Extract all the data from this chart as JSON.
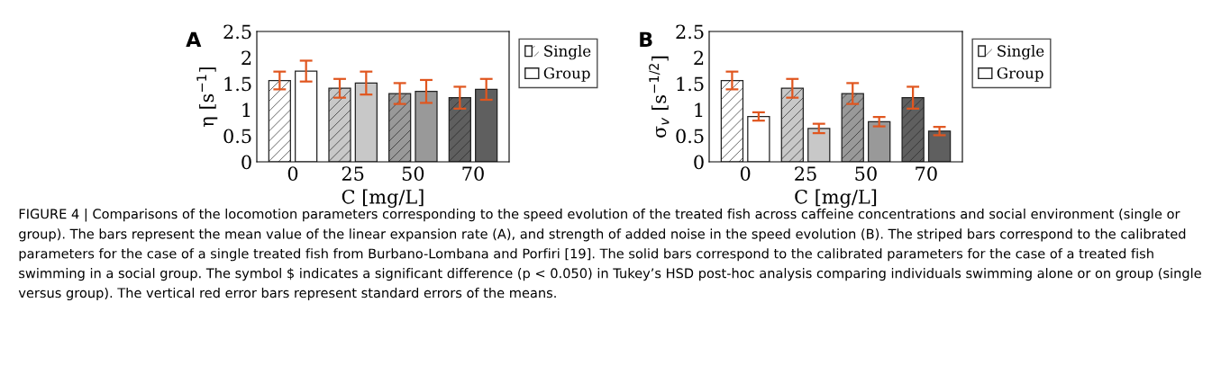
{
  "chart_data": [
    {
      "type": "bar",
      "title": "A",
      "xlabel": "C [mg/L]",
      "ylabel": "η [s$^{−1}$]",
      "categories": [
        "0",
        "25",
        "50",
        "70"
      ],
      "ylim": [
        0,
        2.5
      ],
      "yticks": [
        0,
        0.5,
        1,
        1.5,
        2,
        2.5
      ],
      "legend": "top right",
      "grid": false,
      "series": [
        {
          "name": "Single",
          "colors": [
            "#ffffff",
            "#c8c8c8",
            "#999999",
            "#5f5f5f"
          ],
          "values": [
            1.56,
            1.41,
            1.31,
            1.23
          ],
          "errors": [
            0.17,
            0.18,
            0.2,
            0.21
          ]
        },
        {
          "name": "Group",
          "colors": [
            "#ffffff",
            "#c8c8c8",
            "#999999",
            "#5f5f5f"
          ],
          "values": [
            1.74,
            1.51,
            1.35,
            1.39
          ],
          "errors": [
            0.2,
            0.22,
            0.22,
            0.2
          ]
        }
      ],
      "annotations": [
        "FIGURE 4 | Comparisons of the locomotion parameters corresponding to the speed evolution of the treated fish across caffeine concentrations and social environment (single or group). The bars represent the mean value of the linear expansion rate (A), and strength of added noise in the speed evolution (B). The striped bars correspond to the calibrated parameters for the case of a single treated fish from Burbano-Lombana and Porfiri [19]. The solid bars correspond to the calibrated parameters for the case of a treated fish swimming in a social group. The symbol $ indicates a significant difference (p < 0.050) in Tukey’s HSD post-hoc analysis comparing individuals swimming alone or on group (single versus group). The vertical red error bars represent standard errors of the means."
      ]
    },
    {
      "type": "bar",
      "title": "B",
      "xlabel": "C [mg/L]",
      "ylabel": "σ$_{v}$ [s$^{−1/2}$]",
      "categories": [
        "0",
        "25",
        "50",
        "70"
      ],
      "ylim": [
        0,
        2.5
      ],
      "yticks": [
        0,
        0.5,
        1,
        1.5,
        2,
        2.5
      ],
      "legend": "top right",
      "grid": false,
      "series": [
        {
          "name": "Single",
          "colors": [
            "#ffffff",
            "#c8c8c8",
            "#999999",
            "#5f5f5f"
          ],
          "values": [
            1.56,
            1.41,
            1.31,
            1.23
          ],
          "errors": [
            0.17,
            0.18,
            0.2,
            0.21
          ]
        },
        {
          "name": "Group",
          "colors": [
            "#ffffff",
            "#c8c8c8",
            "#999999",
            "#5f5f5f"
          ],
          "values": [
            0.87,
            0.64,
            0.77,
            0.59
          ],
          "errors": [
            0.08,
            0.09,
            0.09,
            0.08
          ]
        }
      ]
    }
  ]
}
